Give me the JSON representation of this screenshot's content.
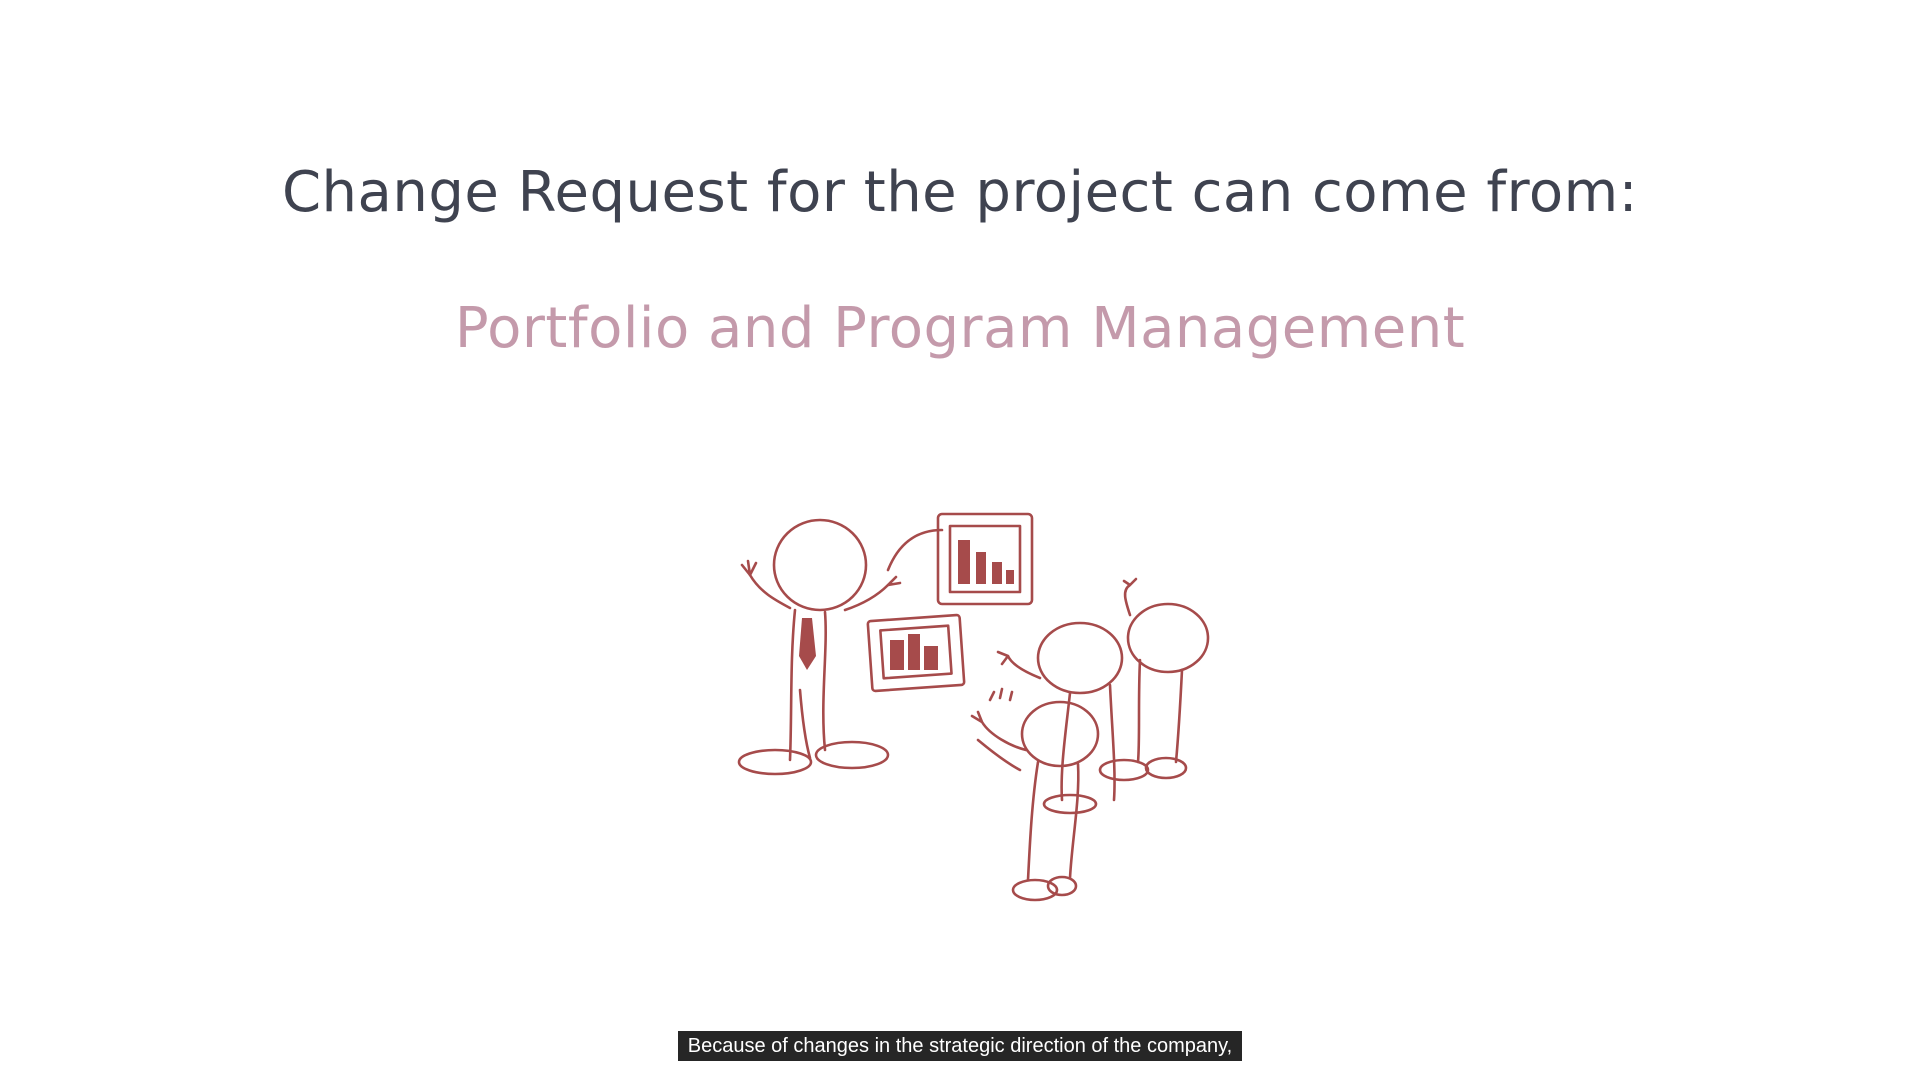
{
  "slide": {
    "heading": "Change Request for the project can come from:",
    "subheading": "Portfolio and Program Management"
  },
  "illustration": {
    "icon": "presenter-with-audience-sketch-icon",
    "stroke_color": "#a64b4b"
  },
  "subtitle": {
    "text": "Because of changes in the strategic direction of the company,"
  },
  "colors": {
    "heading": "#3f4350",
    "subheading": "#c49aab",
    "caption_bg": "#262626"
  }
}
